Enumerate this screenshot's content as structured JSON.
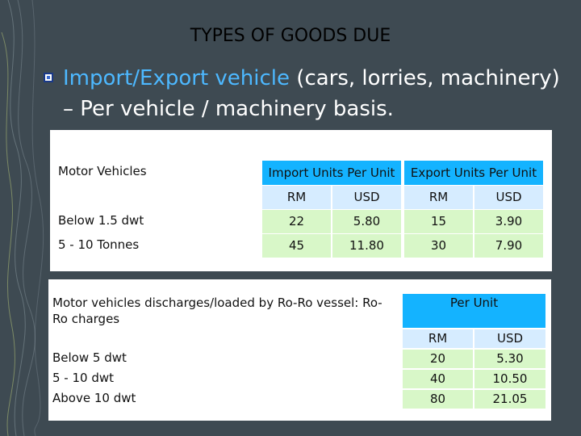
{
  "slide": {
    "title": "TYPES OF GOODS DUE",
    "bullet_part1": "Import/Export vehicle",
    "bullet_part2": " (cars, lorries, machinery) – Per vehicle / machinery  basis."
  },
  "table1": {
    "title": "Motor Vehicles",
    "import_header": "Import Units Per Unit",
    "export_header": "Export Units Per Unit",
    "subheaders": [
      "RM",
      "USD",
      "RM",
      "USD"
    ],
    "rows": [
      {
        "label": "Below 1.5 dwt",
        "values": [
          "22",
          "5.80",
          "15",
          "3.90"
        ]
      },
      {
        "label": "5 - 10 Tonnes",
        "values": [
          "45",
          "11.80",
          "30",
          "7.90"
        ]
      }
    ]
  },
  "table2": {
    "title": "Motor vehicles discharges/loaded by Ro-Ro vessel: Ro-Ro charges",
    "header": "Per Unit",
    "subheaders": [
      "RM",
      "USD"
    ],
    "rows": [
      {
        "label": "Below 5 dwt",
        "values": [
          "20",
          "5.30"
        ]
      },
      {
        "label": "5 - 10 dwt",
        "values": [
          "40",
          "10.50"
        ]
      },
      {
        "label": "Above 10 dwt",
        "values": [
          "80",
          "21.05"
        ]
      }
    ]
  },
  "colors": {
    "background": "#3e4a52",
    "highlight": "#4db8ff",
    "header_blue": "#14b3ff",
    "cell_green": "#d8f7c8"
  }
}
